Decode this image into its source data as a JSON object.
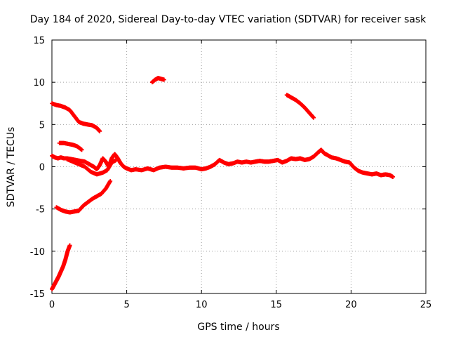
{
  "chart_data": {
    "type": "scatter",
    "title": "Day 184 of 2020, Sidereal Day-to-day VTEC variation (SDTVAR) for receiver sask",
    "xlabel": "GPS time / hours",
    "ylabel": "SDTVAR / TECUs",
    "xlim": [
      0,
      25
    ],
    "ylim": [
      -15,
      15
    ],
    "x_ticks": [
      0,
      5,
      10,
      15,
      20,
      25
    ],
    "x_tick_labels": [
      "0",
      "5",
      "10",
      "15",
      "20",
      "25"
    ],
    "y_ticks": [
      -15,
      -10,
      -5,
      0,
      5,
      10,
      15
    ],
    "y_tick_labels": [
      "-15",
      "-10",
      "-5",
      "0",
      "5",
      "10",
      "15"
    ],
    "grid": true,
    "marker": "plus",
    "color": "#ff0000",
    "series": [
      {
        "name": "main",
        "x": [
          0.0,
          0.2,
          0.4,
          0.6,
          0.8,
          1.0,
          1.3,
          1.6,
          1.9,
          2.2,
          2.5,
          2.8,
          3.0,
          3.2,
          3.4,
          3.6,
          3.8,
          4.0,
          4.2,
          4.4,
          4.6,
          4.8,
          5.0,
          5.3,
          5.6,
          6.0,
          6.4,
          6.8,
          7.2,
          7.6,
          8.0,
          8.4,
          8.8,
          9.2,
          9.6,
          10.0,
          10.3,
          10.6,
          10.9,
          11.2,
          11.5,
          11.8,
          12.1,
          12.4,
          12.7,
          13.0,
          13.3,
          13.6,
          13.9,
          14.2,
          14.5,
          14.8,
          15.1,
          15.4,
          15.7,
          16.0,
          16.3,
          16.6,
          16.9,
          17.2,
          17.5,
          17.8,
          18.0,
          18.2,
          18.4,
          18.7,
          19.0,
          19.3,
          19.6,
          19.9,
          20.2,
          20.5,
          20.8,
          21.1,
          21.4,
          21.7,
          22.0,
          22.3,
          22.6,
          22.8
        ],
        "y": [
          1.3,
          1.1,
          1.0,
          1.1,
          1.0,
          1.0,
          0.9,
          0.8,
          0.7,
          0.6,
          0.3,
          0.0,
          -0.3,
          0.2,
          1.0,
          0.6,
          0.0,
          1.0,
          1.5,
          1.0,
          0.4,
          0.0,
          -0.2,
          -0.4,
          -0.3,
          -0.4,
          -0.2,
          -0.4,
          -0.1,
          0.0,
          -0.1,
          -0.1,
          -0.2,
          -0.1,
          -0.1,
          -0.3,
          -0.2,
          0.0,
          0.3,
          0.8,
          0.5,
          0.3,
          0.4,
          0.6,
          0.5,
          0.6,
          0.5,
          0.6,
          0.7,
          0.6,
          0.6,
          0.7,
          0.8,
          0.5,
          0.7,
          1.0,
          0.9,
          1.0,
          0.8,
          0.9,
          1.2,
          1.7,
          2.0,
          1.6,
          1.4,
          1.1,
          1.0,
          0.8,
          0.6,
          0.5,
          -0.1,
          -0.5,
          -0.7,
          -0.8,
          -0.9,
          -0.8,
          -1.0,
          -0.9,
          -1.0,
          -1.2
        ]
      },
      {
        "name": "loop",
        "x": [
          1.0,
          1.4,
          1.8,
          2.2,
          2.6,
          3.0,
          3.4,
          3.7,
          4.0,
          4.3
        ],
        "y": [
          0.9,
          0.6,
          0.3,
          0.0,
          -0.6,
          -0.9,
          -0.7,
          -0.4,
          0.5,
          0.8
        ]
      },
      {
        "name": "upper-descending",
        "x": [
          0.0,
          0.3,
          0.6,
          0.9,
          1.2,
          1.5,
          1.8,
          2.1,
          2.4,
          2.7,
          3.0,
          3.2
        ],
        "y": [
          7.5,
          7.3,
          7.2,
          7.0,
          6.7,
          6.0,
          5.3,
          5.1,
          5.0,
          4.9,
          4.6,
          4.2
        ]
      },
      {
        "name": "short-upper",
        "x": [
          0.5,
          0.8,
          1.1,
          1.4,
          1.7,
          2.0
        ],
        "y": [
          2.8,
          2.8,
          2.7,
          2.6,
          2.4,
          2.0
        ]
      },
      {
        "name": "lower-rising",
        "x": [
          0.3,
          0.6,
          0.9,
          1.2,
          1.5,
          1.8,
          2.1,
          2.4,
          2.7,
          3.0,
          3.3,
          3.6,
          3.9
        ],
        "y": [
          -4.8,
          -5.1,
          -5.3,
          -5.4,
          -5.3,
          -5.2,
          -4.6,
          -4.2,
          -3.8,
          -3.5,
          -3.2,
          -2.6,
          -1.7
        ]
      },
      {
        "name": "bottom-steep",
        "x": [
          0.0,
          0.15,
          0.3,
          0.45,
          0.6,
          0.75,
          0.9,
          1.05,
          1.2
        ],
        "y": [
          -14.5,
          -14.0,
          -13.5,
          -13.0,
          -12.4,
          -11.8,
          -11.0,
          -10.0,
          -9.3
        ]
      },
      {
        "name": "mid-top",
        "x": [
          6.7,
          6.9,
          7.1,
          7.3,
          7.5
        ],
        "y": [
          10.0,
          10.3,
          10.5,
          10.4,
          10.3
        ]
      },
      {
        "name": "right-descending",
        "x": [
          15.7,
          16.0,
          16.3,
          16.6,
          16.9,
          17.2,
          17.5
        ],
        "y": [
          8.5,
          8.2,
          7.9,
          7.5,
          7.0,
          6.4,
          5.8
        ]
      }
    ]
  }
}
